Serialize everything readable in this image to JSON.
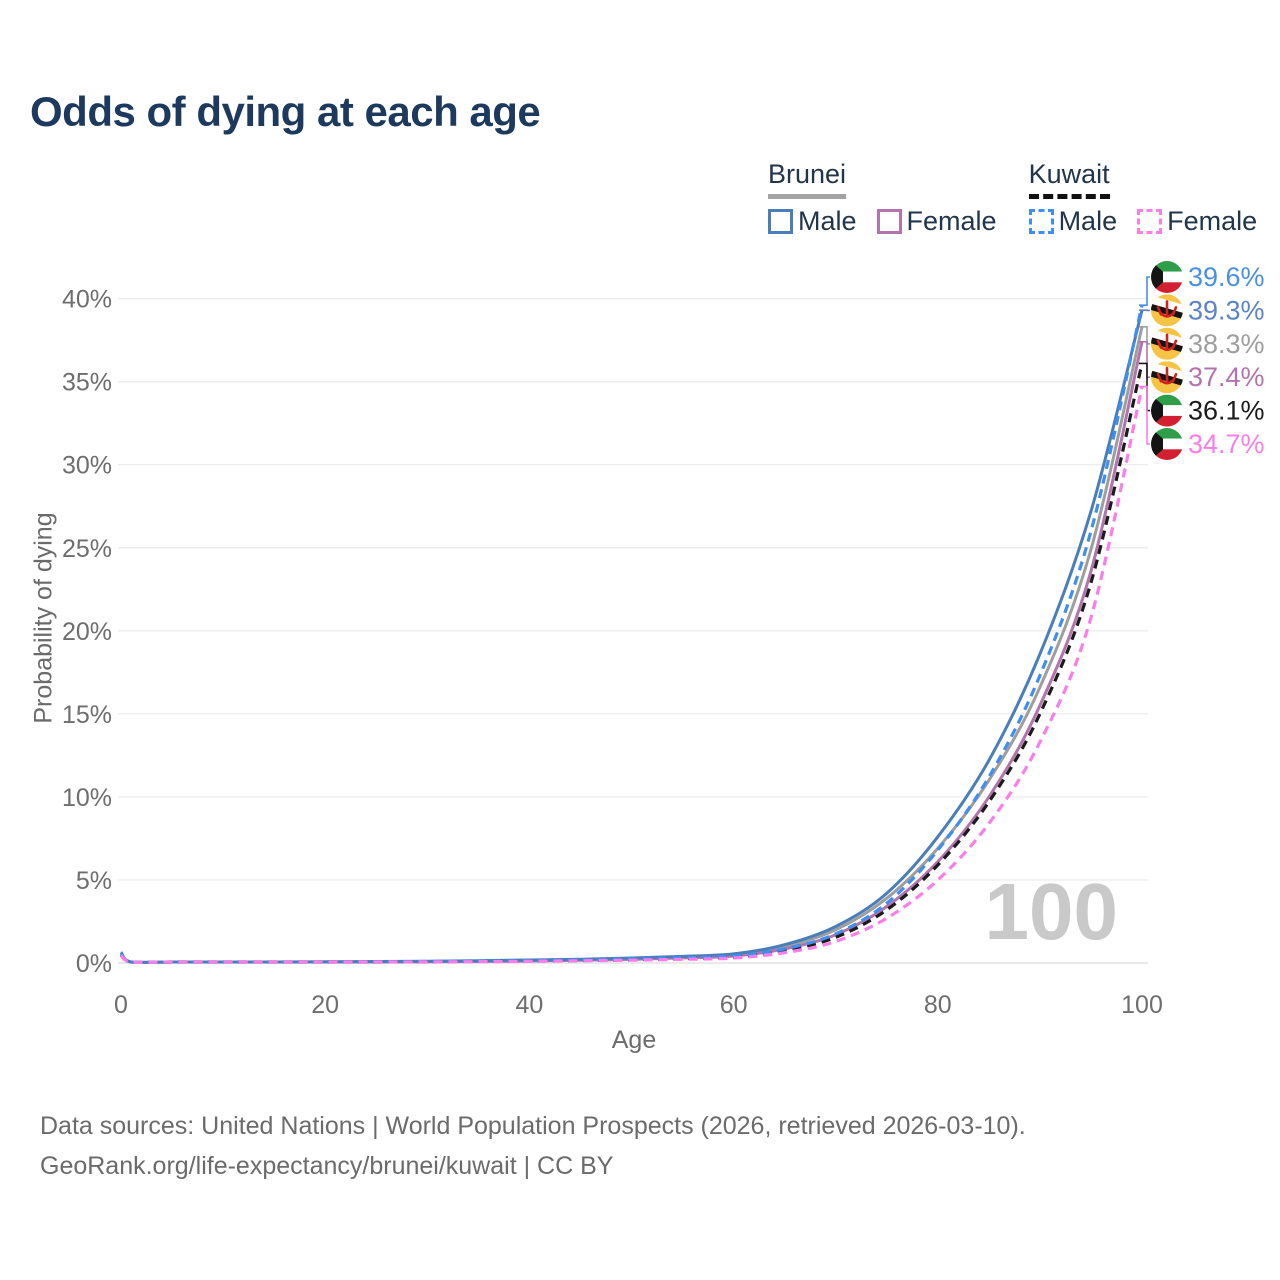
{
  "title": "Odds of dying at each age",
  "legend": {
    "groups": [
      {
        "title": "Brunei",
        "line_style": "solid",
        "underline_color": "#a3a3a3",
        "items": [
          {
            "label": "Male",
            "color": "#4a7ebb"
          },
          {
            "label": "Female",
            "color": "#b273ae"
          }
        ]
      },
      {
        "title": "Kuwait",
        "line_style": "dashed",
        "underline_color": "#111111",
        "items": [
          {
            "label": "Male",
            "color": "#3f8ef0"
          },
          {
            "label": "Female",
            "color": "#fb7de9"
          }
        ]
      }
    ]
  },
  "chart_data": {
    "type": "line",
    "title": "Odds of dying at each age",
    "xlabel": "Age",
    "ylabel": "Probability of dying",
    "xlim": [
      0,
      100
    ],
    "ylim_pct": [
      0,
      41.5
    ],
    "grid": "horizontal",
    "legend_position": "top-right",
    "watermark": "100",
    "x_ticks": [
      0,
      20,
      40,
      60,
      80,
      100
    ],
    "y_ticks": [
      "0%",
      "5%",
      "10%",
      "15%",
      "20%",
      "25%",
      "30%",
      "35%",
      "40%"
    ],
    "y_tick_values": [
      0,
      5,
      10,
      15,
      20,
      25,
      30,
      35,
      40
    ],
    "x": [
      0,
      1,
      5,
      10,
      15,
      20,
      25,
      30,
      35,
      40,
      45,
      50,
      55,
      60,
      65,
      70,
      75,
      80,
      85,
      90,
      95,
      100
    ],
    "series": [
      {
        "name": "Brunei Both",
        "country": "brunei",
        "sex": "both",
        "color": "#9e9e9e",
        "dash": false,
        "values": [
          0.6,
          0.045,
          0.025,
          0.025,
          0.04,
          0.06,
          0.07,
          0.09,
          0.12,
          0.15,
          0.2,
          0.26,
          0.36,
          0.5,
          1.0,
          2.0,
          3.9,
          6.9,
          11.0,
          16.6,
          24.9,
          38.3
        ]
      },
      {
        "name": "Brunei Female",
        "country": "brunei",
        "sex": "female",
        "color": "#b273ae",
        "dash": false,
        "values": [
          0.55,
          0.04,
          0.02,
          0.02,
          0.03,
          0.04,
          0.05,
          0.07,
          0.09,
          0.12,
          0.16,
          0.22,
          0.31,
          0.42,
          0.85,
          1.7,
          3.4,
          6.1,
          10.0,
          15.5,
          23.6,
          37.4
        ]
      },
      {
        "name": "Brunei Male",
        "country": "brunei",
        "sex": "male",
        "color": "#4a7ebb",
        "dash": false,
        "values": [
          0.65,
          0.05,
          0.03,
          0.03,
          0.05,
          0.07,
          0.09,
          0.11,
          0.14,
          0.18,
          0.23,
          0.3,
          0.4,
          0.55,
          1.1,
          2.2,
          4.2,
          7.6,
          12.2,
          18.6,
          27.2,
          39.3
        ]
      },
      {
        "name": "Kuwait Both",
        "country": "kuwait",
        "sex": "both",
        "color": "#1b1b1b",
        "dash": true,
        "values": [
          0.5,
          0.035,
          0.02,
          0.02,
          0.04,
          0.05,
          0.06,
          0.08,
          0.1,
          0.12,
          0.15,
          0.2,
          0.27,
          0.36,
          0.75,
          1.55,
          3.2,
          5.9,
          9.7,
          15.0,
          22.9,
          36.1
        ]
      },
      {
        "name": "Kuwait Male",
        "country": "kuwait",
        "sex": "male",
        "color": "#3f8ef0",
        "dash": true,
        "values": [
          0.55,
          0.04,
          0.02,
          0.03,
          0.05,
          0.06,
          0.08,
          0.09,
          0.11,
          0.14,
          0.18,
          0.24,
          0.32,
          0.42,
          0.85,
          1.75,
          3.6,
          6.8,
          11.2,
          17.3,
          26.0,
          39.6
        ]
      },
      {
        "name": "Kuwait Female",
        "country": "kuwait",
        "sex": "female",
        "color": "#fb7de9",
        "dash": true,
        "values": [
          0.45,
          0.03,
          0.015,
          0.02,
          0.03,
          0.04,
          0.05,
          0.06,
          0.08,
          0.1,
          0.13,
          0.17,
          0.22,
          0.3,
          0.62,
          1.3,
          2.7,
          5.0,
          8.4,
          13.3,
          20.8,
          34.7
        ]
      }
    ],
    "end_labels": [
      {
        "text": "39.6%",
        "value": 39.6,
        "color": "#4a90e2",
        "flag": "kuwait",
        "series": "Kuwait Male"
      },
      {
        "text": "39.3%",
        "value": 39.3,
        "color": "#5b84c4",
        "flag": "brunei",
        "series": "Brunei Male"
      },
      {
        "text": "38.3%",
        "value": 38.3,
        "color": "#9e9e9e",
        "flag": "brunei",
        "series": "Brunei Both"
      },
      {
        "text": "37.4%",
        "value": 37.4,
        "color": "#b573ae",
        "flag": "brunei",
        "series": "Brunei Female"
      },
      {
        "text": "36.1%",
        "value": 36.1,
        "color": "#1b1b1b",
        "flag": "kuwait",
        "series": "Kuwait Both"
      },
      {
        "text": "34.7%",
        "value": 34.7,
        "color": "#fb7de9",
        "flag": "kuwait",
        "series": "Kuwait Female"
      }
    ]
  },
  "footer": {
    "line1": "Data sources: United Nations | World Population Prospects (2026, retrieved 2026-03-10).",
    "line2": "GeoRank.org/life-expectancy/brunei/kuwait | CC BY"
  }
}
